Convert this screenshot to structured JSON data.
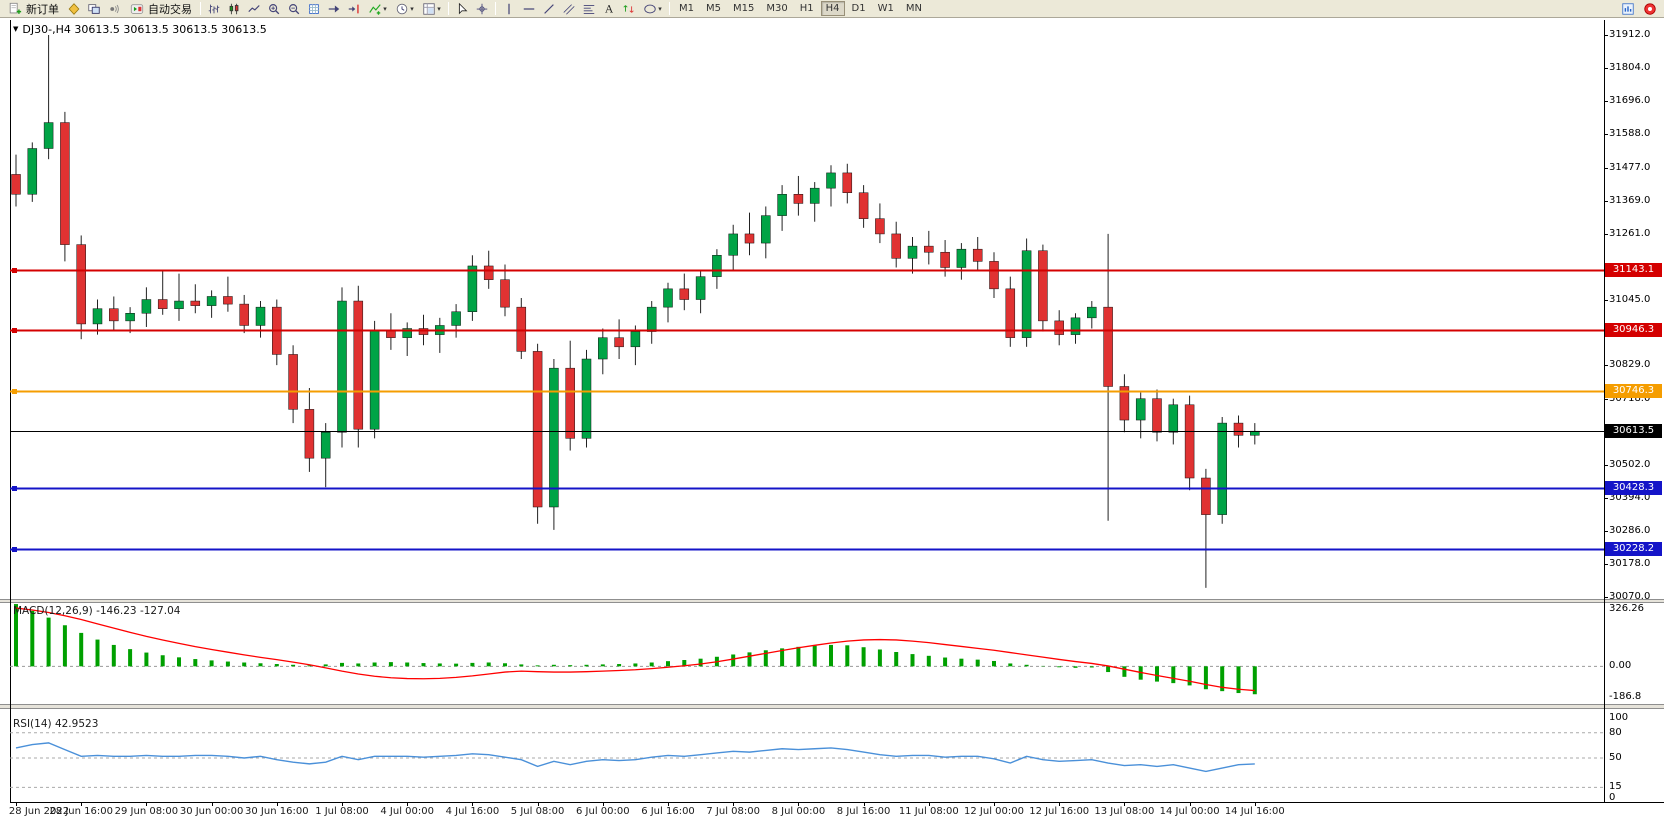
{
  "toolbar": {
    "items": [
      {
        "t": "btn",
        "name": "new-order-button",
        "icon": "new-order-icon",
        "label": "新订单"
      },
      {
        "t": "i",
        "name": "diamond-icon"
      },
      {
        "t": "i",
        "name": "chart-windows-icon"
      },
      {
        "t": "i",
        "name": "signal-icon"
      },
      {
        "t": "btn",
        "name": "auto-trading-button",
        "icon": "autotrading-icon",
        "label": "自动交易"
      },
      {
        "t": "sep"
      },
      {
        "t": "i",
        "name": "bar-chart-icon"
      },
      {
        "t": "i",
        "name": "candlestick-chart-icon"
      },
      {
        "t": "i",
        "name": "line-chart-icon"
      },
      {
        "t": "i",
        "name": "zoom-in-icon"
      },
      {
        "t": "i",
        "name": "zoom-out-icon"
      },
      {
        "t": "i",
        "name": "grid-icon"
      },
      {
        "t": "i",
        "name": "auto-scroll-icon"
      },
      {
        "t": "i",
        "name": "chart-shift-icon"
      },
      {
        "t": "dd",
        "name": "indicators-dropdown",
        "icon": "indicators-icon"
      },
      {
        "t": "dd",
        "name": "periods-dropdown",
        "icon": "clock-icon"
      },
      {
        "t": "dd",
        "name": "templates-dropdown",
        "icon": "template-icon"
      },
      {
        "t": "sep"
      },
      {
        "t": "i",
        "name": "cursor-icon"
      },
      {
        "t": "i",
        "name": "crosshair-icon"
      },
      {
        "t": "sep"
      },
      {
        "t": "i",
        "name": "vertical-line-icon"
      },
      {
        "t": "i",
        "name": "horizontal-line-icon"
      },
      {
        "t": "i",
        "name": "trendline-icon"
      },
      {
        "t": "i",
        "name": "channel-icon"
      },
      {
        "t": "i",
        "name": "fibonacci-icon"
      },
      {
        "t": "i",
        "name": "text-icon"
      },
      {
        "t": "i",
        "name": "arrows-icon"
      },
      {
        "t": "dd",
        "name": "shapes-dropdown",
        "icon": "shapes-icon"
      },
      {
        "t": "sep"
      }
    ],
    "timeframes": [
      "M1",
      "M5",
      "M15",
      "M30",
      "H1",
      "H4",
      "D1",
      "W1",
      "MN"
    ],
    "active_timeframe": "H4",
    "right_icons": [
      "stats-icon",
      "alert-icon"
    ]
  },
  "chart": {
    "title": "DJ30-,H4 30613.5 30613.5 30613.5 30613.5",
    "symbol": "DJ30-",
    "period": "H4"
  },
  "price_axis": {
    "labels": [
      "31912.0",
      "31804.0",
      "31696.0",
      "31588.0",
      "31477.0",
      "31369.0",
      "31261.0",
      "31045.0",
      "30829.0",
      "30718.0",
      "30502.0",
      "30394.0",
      "30286.0",
      "30178.0",
      "30070.0"
    ],
    "badges": [
      {
        "text": "31143.1",
        "color": "#d40000"
      },
      {
        "text": "30946.3",
        "color": "#d40000"
      },
      {
        "text": "30746.3",
        "color": "#f59d00"
      },
      {
        "text": "30613.5",
        "color": "#000000"
      },
      {
        "text": "30428.3",
        "color": "#1414c8"
      },
      {
        "text": "30228.2",
        "color": "#1414c8"
      }
    ]
  },
  "indicators": {
    "macd_label": "MACD(12,26,9) -146.23 -127.04",
    "macd_axis": [
      "326.26",
      "0.00",
      "-186.8"
    ],
    "rsi_label": "RSI(14) 42.9523",
    "rsi_axis": [
      "100",
      "80",
      "50",
      "15",
      "0"
    ],
    "rsi_levels": [
      80,
      50,
      15
    ]
  },
  "chart_data": {
    "type": "candlestick",
    "symbol": "DJ30-",
    "timeframe": "H4",
    "ohlc_current": "30613.5 30613.5 30613.5 30613.5",
    "y_range": [
      30070.0,
      31912.0
    ],
    "x_labels": [
      "28 Jun 2022",
      "28 Jun 16:00",
      "29 Jun 08:00",
      "30 Jun 00:00",
      "30 Jun 16:00",
      "1 Jul 08:00",
      "4 Jul 00:00",
      "4 Jul 16:00",
      "5 Jul 08:00",
      "6 Jul 00:00",
      "6 Jul 16:00",
      "7 Jul 08:00",
      "8 Jul 00:00",
      "8 Jul 16:00",
      "11 Jul 08:00",
      "12 Jul 00:00",
      "12 Jul 16:00",
      "13 Jul 08:00",
      "14 Jul 00:00",
      "14 Jul 16:00"
    ],
    "candles_per_x_label": 4,
    "candles": [
      [
        31455,
        31520,
        31350,
        31390
      ],
      [
        31390,
        31560,
        31365,
        31540
      ],
      [
        31540,
        31912,
        31505,
        31625
      ],
      [
        31625,
        31660,
        31170,
        31225
      ],
      [
        31225,
        31255,
        30915,
        30965
      ],
      [
        30965,
        31045,
        30930,
        31015
      ],
      [
        31015,
        31055,
        30945,
        30975
      ],
      [
        30975,
        31020,
        30935,
        31000
      ],
      [
        31000,
        31085,
        30955,
        31045
      ],
      [
        31045,
        31140,
        30995,
        31015
      ],
      [
        31015,
        31130,
        30975,
        31040
      ],
      [
        31040,
        31095,
        31000,
        31025
      ],
      [
        31025,
        31075,
        30985,
        31055
      ],
      [
        31055,
        31120,
        31005,
        31030
      ],
      [
        31030,
        31060,
        30935,
        30960
      ],
      [
        30960,
        31040,
        30920,
        31020
      ],
      [
        31020,
        31045,
        30830,
        30865
      ],
      [
        30865,
        30895,
        30640,
        30685
      ],
      [
        30685,
        30755,
        30480,
        30525
      ],
      [
        30525,
        30640,
        30430,
        30610
      ],
      [
        30610,
        31085,
        30560,
        31040
      ],
      [
        31040,
        31090,
        30560,
        30620
      ],
      [
        30620,
        30975,
        30590,
        30945
      ],
      [
        30945,
        31000,
        30880,
        30920
      ],
      [
        30920,
        30970,
        30860,
        30950
      ],
      [
        30950,
        30995,
        30895,
        30930
      ],
      [
        30930,
        30985,
        30870,
        30960
      ],
      [
        30960,
        31030,
        30920,
        31005
      ],
      [
        31005,
        31190,
        30975,
        31155
      ],
      [
        31155,
        31205,
        31080,
        31110
      ],
      [
        31110,
        31160,
        30990,
        31020
      ],
      [
        31020,
        31050,
        30850,
        30875
      ],
      [
        30875,
        30900,
        30310,
        30365
      ],
      [
        30365,
        30850,
        30290,
        30820
      ],
      [
        30820,
        30910,
        30550,
        30590
      ],
      [
        30590,
        30880,
        30560,
        30850
      ],
      [
        30850,
        30950,
        30800,
        30920
      ],
      [
        30920,
        30980,
        30850,
        30890
      ],
      [
        30890,
        30960,
        30830,
        30940
      ],
      [
        30940,
        31040,
        30900,
        31020
      ],
      [
        31020,
        31100,
        30970,
        31080
      ],
      [
        31080,
        31130,
        31010,
        31045
      ],
      [
        31045,
        31140,
        31000,
        31120
      ],
      [
        31120,
        31210,
        31080,
        31190
      ],
      [
        31190,
        31290,
        31140,
        31260
      ],
      [
        31260,
        31330,
        31190,
        31230
      ],
      [
        31230,
        31350,
        31180,
        31320
      ],
      [
        31320,
        31420,
        31270,
        31390
      ],
      [
        31390,
        31450,
        31320,
        31360
      ],
      [
        31360,
        31430,
        31300,
        31410
      ],
      [
        31410,
        31485,
        31350,
        31460
      ],
      [
        31460,
        31490,
        31360,
        31395
      ],
      [
        31395,
        31420,
        31280,
        31310
      ],
      [
        31310,
        31360,
        31230,
        31260
      ],
      [
        31260,
        31300,
        31150,
        31180
      ],
      [
        31180,
        31250,
        31130,
        31220
      ],
      [
        31220,
        31270,
        31160,
        31200
      ],
      [
        31200,
        31240,
        31120,
        31150
      ],
      [
        31150,
        31230,
        31110,
        31210
      ],
      [
        31210,
        31250,
        31140,
        31170
      ],
      [
        31170,
        31200,
        31050,
        31080
      ],
      [
        31080,
        31120,
        30890,
        30920
      ],
      [
        30920,
        31245,
        30890,
        31205
      ],
      [
        31205,
        31225,
        30940,
        30975
      ],
      [
        30975,
        31010,
        30895,
        30930
      ],
      [
        30930,
        31000,
        30900,
        30985
      ],
      [
        30985,
        31040,
        30950,
        31020
      ],
      [
        31020,
        31260,
        30320,
        30760
      ],
      [
        30760,
        30800,
        30610,
        30650
      ],
      [
        30650,
        30740,
        30590,
        30720
      ],
      [
        30720,
        30750,
        30580,
        30610
      ],
      [
        30610,
        30720,
        30570,
        30700
      ],
      [
        30700,
        30730,
        30420,
        30460
      ],
      [
        30460,
        30490,
        30100,
        30340
      ],
      [
        30340,
        30660,
        30310,
        30640
      ],
      [
        30640,
        30665,
        30560,
        30600
      ],
      [
        30600,
        30640,
        30570,
        30613.5
      ]
    ],
    "hlines": [
      {
        "price": 31143.1,
        "color": "#d40000",
        "width": 2
      },
      {
        "price": 30946.3,
        "color": "#d40000",
        "width": 2
      },
      {
        "price": 30746.3,
        "color": "#f59d00",
        "width": 2
      },
      {
        "price": 30613.5,
        "color": "#000000",
        "width": 1
      },
      {
        "price": 30428.3,
        "color": "#1414c8",
        "width": 2
      },
      {
        "price": 30228.2,
        "color": "#1414c8",
        "width": 2
      }
    ],
    "macd": {
      "range": [
        -186.8,
        326.26
      ],
      "hist": [
        326,
        290,
        255,
        215,
        175,
        140,
        112,
        90,
        72,
        58,
        47,
        38,
        31,
        25,
        20,
        16,
        12,
        8,
        5,
        10,
        18,
        15,
        20,
        22,
        20,
        17,
        15,
        14,
        18,
        20,
        16,
        10,
        5,
        8,
        6,
        8,
        10,
        12,
        15,
        20,
        27,
        33,
        40,
        50,
        62,
        73,
        84,
        94,
        102,
        108,
        112,
        110,
        100,
        88,
        75,
        64,
        55,
        46,
        40,
        35,
        28,
        15,
        8,
        2,
        -5,
        -8,
        -6,
        -30,
        -55,
        -70,
        -80,
        -88,
        -100,
        -120,
        -130,
        -140,
        -146.23
      ],
      "signal": [
        305,
        295,
        282,
        265,
        245,
        222,
        200,
        178,
        157,
        138,
        120,
        103,
        88,
        74,
        60,
        47,
        35,
        22,
        8,
        -8,
        -25,
        -40,
        -52,
        -60,
        -64,
        -65,
        -63,
        -58,
        -50,
        -40,
        -30,
        -25,
        -28,
        -30,
        -30,
        -28,
        -25,
        -22,
        -18,
        -12,
        -5,
        3,
        12,
        24,
        38,
        53,
        68,
        83,
        97,
        110,
        122,
        132,
        138,
        140,
        138,
        132,
        124,
        114,
        104,
        94,
        84,
        72,
        60,
        48,
        36,
        25,
        15,
        2,
        -15,
        -32,
        -48,
        -63,
        -78,
        -95,
        -110,
        -120,
        -127.04
      ]
    },
    "rsi": {
      "range": [
        0,
        100
      ],
      "values": [
        62,
        66,
        68,
        60,
        52,
        53,
        52,
        52,
        53,
        52,
        52,
        53,
        53,
        52,
        50,
        52,
        48,
        45,
        43,
        45,
        52,
        48,
        52,
        52,
        52,
        51,
        52,
        53,
        55,
        54,
        51,
        48,
        40,
        46,
        42,
        46,
        48,
        47,
        48,
        51,
        53,
        52,
        54,
        56,
        58,
        57,
        59,
        61,
        60,
        61,
        62,
        60,
        57,
        54,
        52,
        53,
        53,
        51,
        52,
        52,
        49,
        44,
        52,
        48,
        46,
        47,
        48,
        44,
        41,
        42,
        40,
        42,
        38,
        34,
        38,
        42,
        42.95
      ]
    },
    "colors": {
      "bull": "#00a446",
      "bear": "#e03232",
      "macd_hist": "#00a000",
      "macd_signal": "#ff0000",
      "rsi_line": "#4a90d9"
    }
  }
}
